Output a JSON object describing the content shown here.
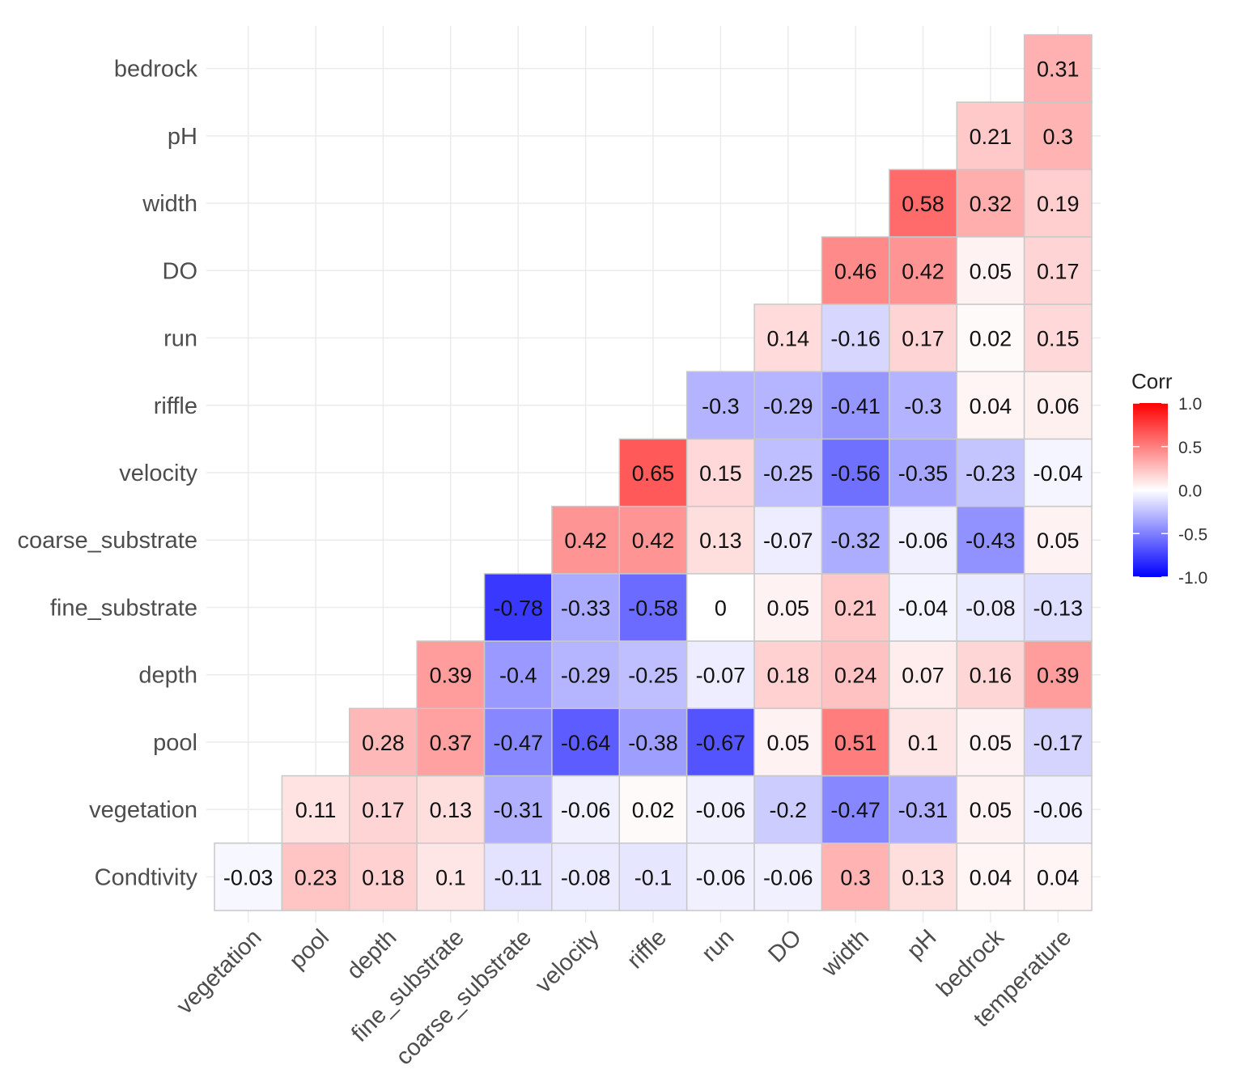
{
  "chart_data": {
    "type": "heatmap",
    "title": "",
    "xlabel": "",
    "ylabel": "",
    "x_categories": [
      "vegetation",
      "pool",
      "depth",
      "fine_substrate",
      "coarse_substrate",
      "velocity",
      "riffle",
      "run",
      "DO",
      "width",
      "pH",
      "bedrock",
      "temperature"
    ],
    "y_categories": [
      "Condtivity",
      "vegetation",
      "pool",
      "depth",
      "fine_substrate",
      "coarse_substrate",
      "velocity",
      "riffle",
      "run",
      "DO",
      "width",
      "pH",
      "bedrock"
    ],
    "rows": [
      {
        "name": "Condtivity",
        "values": [
          -0.03,
          0.23,
          0.18,
          0.1,
          -0.11,
          -0.08,
          -0.1,
          -0.06,
          -0.06,
          0.3,
          0.13,
          0.04,
          0.04
        ]
      },
      {
        "name": "vegetation",
        "values": [
          null,
          0.11,
          0.17,
          0.13,
          -0.31,
          -0.06,
          0.02,
          -0.06,
          -0.2,
          -0.47,
          -0.31,
          0.05,
          -0.06
        ]
      },
      {
        "name": "pool",
        "values": [
          null,
          null,
          0.28,
          0.37,
          -0.47,
          -0.64,
          -0.38,
          -0.67,
          0.05,
          0.51,
          0.1,
          0.05,
          -0.17
        ]
      },
      {
        "name": "depth",
        "values": [
          null,
          null,
          null,
          0.39,
          -0.4,
          -0.29,
          -0.25,
          -0.07,
          0.18,
          0.24,
          0.07,
          0.16,
          0.39
        ]
      },
      {
        "name": "fine_substrate",
        "values": [
          null,
          null,
          null,
          null,
          -0.78,
          -0.33,
          -0.58,
          0,
          0.05,
          0.21,
          -0.04,
          -0.08,
          -0.13
        ]
      },
      {
        "name": "coarse_substrate",
        "values": [
          null,
          null,
          null,
          null,
          null,
          0.42,
          0.42,
          0.13,
          -0.07,
          -0.32,
          -0.06,
          -0.43,
          0.05
        ]
      },
      {
        "name": "velocity",
        "values": [
          null,
          null,
          null,
          null,
          null,
          null,
          0.65,
          0.15,
          -0.25,
          -0.56,
          -0.35,
          -0.23,
          -0.04
        ]
      },
      {
        "name": "riffle",
        "values": [
          null,
          null,
          null,
          null,
          null,
          null,
          null,
          -0.3,
          -0.29,
          -0.41,
          -0.3,
          0.04,
          0.06
        ]
      },
      {
        "name": "run",
        "values": [
          null,
          null,
          null,
          null,
          null,
          null,
          null,
          null,
          0.14,
          -0.16,
          0.17,
          0.02,
          0.15
        ]
      },
      {
        "name": "DO",
        "values": [
          null,
          null,
          null,
          null,
          null,
          null,
          null,
          null,
          null,
          0.46,
          0.42,
          0.05,
          0.17
        ]
      },
      {
        "name": "width",
        "values": [
          null,
          null,
          null,
          null,
          null,
          null,
          null,
          null,
          null,
          null,
          0.58,
          0.32,
          0.19
        ]
      },
      {
        "name": "pH",
        "values": [
          null,
          null,
          null,
          null,
          null,
          null,
          null,
          null,
          null,
          null,
          null,
          0.21,
          0.3
        ]
      },
      {
        "name": "bedrock",
        "values": [
          null,
          null,
          null,
          null,
          null,
          null,
          null,
          null,
          null,
          null,
          null,
          null,
          0.31
        ]
      }
    ],
    "color_scale": {
      "title": "Corr",
      "range": [
        -1.0,
        1.0
      ],
      "ticks": [
        "1.0",
        "0.5",
        "0.0",
        "-0.5",
        "-1.0"
      ],
      "low_color": "#0000ff",
      "mid_color": "#ffffff",
      "high_color": "#ff0000"
    },
    "grid": true,
    "legend_position": "right"
  }
}
